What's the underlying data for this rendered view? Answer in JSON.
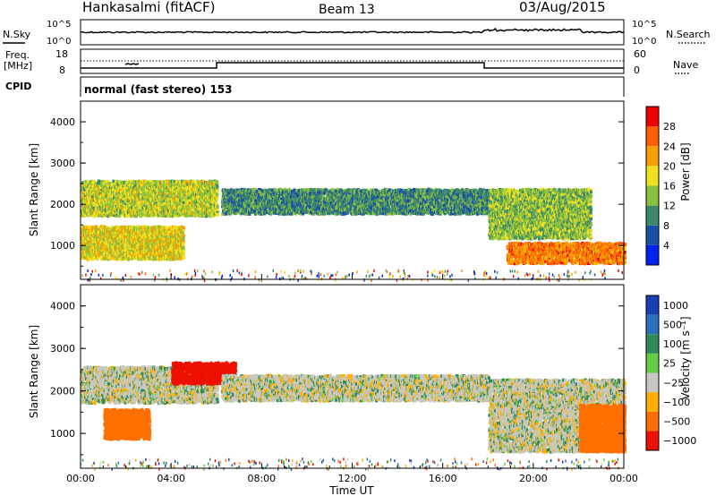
{
  "header": {
    "station": "Hankasalmi (fitACF)",
    "beam": "Beam 13",
    "date": "03/Aug/2015"
  },
  "noise_panel": {
    "left_label": "N.Sky",
    "right_label": "N.Search",
    "left_ticks": [
      "10^5",
      "10^0"
    ],
    "right_ticks": [
      "10^5",
      "10^0"
    ]
  },
  "freq_panel": {
    "left_label_top": "Freq.",
    "left_label_unit": "[MHz]",
    "left_ticks": [
      "18",
      "8"
    ],
    "right_label": "Nave",
    "right_ticks": [
      "60",
      "0"
    ]
  },
  "cpid": {
    "label": "CPID",
    "value": "normal (fast stereo) 153"
  },
  "x_axis": {
    "ticks": [
      "00:00",
      "04:00",
      "08:00",
      "12:00",
      "16:00",
      "20:00",
      "00:00"
    ],
    "label": "Time UT"
  },
  "panels": [
    {
      "ylabel": "Slant Range [km]",
      "yticks": [
        "4000",
        "3000",
        "2000",
        "1000"
      ],
      "colorbar_label": "Power [dB]",
      "colorbar_ticks": [
        "28",
        "24",
        "20",
        "16",
        "12",
        "8",
        "4"
      ],
      "colors": [
        "#0022ee",
        "#1a4fa8",
        "#3a8a6a",
        "#88c040",
        "#f0e020",
        "#f5a000",
        "#ff6000",
        "#ee0000"
      ]
    },
    {
      "ylabel": "Slant Range [km]",
      "yticks": [
        "4000",
        "3000",
        "2000",
        "1000"
      ],
      "colorbar_label": "Velocity [m s⁻¹]",
      "colorbar_ticks": [
        "1000",
        "500",
        "100",
        "25",
        "−25",
        "−100",
        "−500",
        "−1000"
      ],
      "colors": [
        "#1a3fb0",
        "#2a70c0",
        "#2e8a5a",
        "#66cc44",
        "#c8c8c0",
        "#ffb000",
        "#ff7000",
        "#ee1000"
      ]
    }
  ],
  "chart_data": [
    {
      "type": "heatmap",
      "title": "Power",
      "x_range_hours": [
        0,
        24
      ],
      "y_range_km": [
        180,
        4500
      ],
      "bands": [
        {
          "x0": 0.0,
          "x1": 6.0,
          "y0": 1750,
          "y1": 2600,
          "value": 16
        },
        {
          "x0": 0.0,
          "x1": 4.5,
          "y0": 700,
          "y1": 1500,
          "value": 18
        },
        {
          "x0": 6.2,
          "x1": 18.0,
          "y0": 1800,
          "y1": 2400,
          "value": 10
        },
        {
          "x0": 18.0,
          "x1": 22.5,
          "y0": 1200,
          "y1": 2400,
          "value": 14
        },
        {
          "x0": 18.8,
          "x1": 24.0,
          "y0": 600,
          "y1": 1100,
          "value": 24
        }
      ]
    },
    {
      "type": "heatmap",
      "title": "Velocity",
      "x_range_hours": [
        0,
        24
      ],
      "y_range_km": [
        180,
        4500
      ],
      "bands": [
        {
          "x0": 0.0,
          "x1": 6.0,
          "y0": 1750,
          "y1": 2600,
          "value": 0
        },
        {
          "x0": 4.0,
          "x1": 6.8,
          "y0": 2200,
          "y1": 2700,
          "value": -600
        },
        {
          "x0": 1.0,
          "x1": 3.0,
          "y0": 900,
          "y1": 1600,
          "value": -150
        },
        {
          "x0": 6.2,
          "x1": 18.0,
          "y0": 1800,
          "y1": 2400,
          "value": 0
        },
        {
          "x0": 18.0,
          "x1": 24.0,
          "y0": 600,
          "y1": 2300,
          "value": 0
        },
        {
          "x0": 22.0,
          "x1": 24.0,
          "y0": 600,
          "y1": 1700,
          "value": -300
        }
      ]
    }
  ]
}
